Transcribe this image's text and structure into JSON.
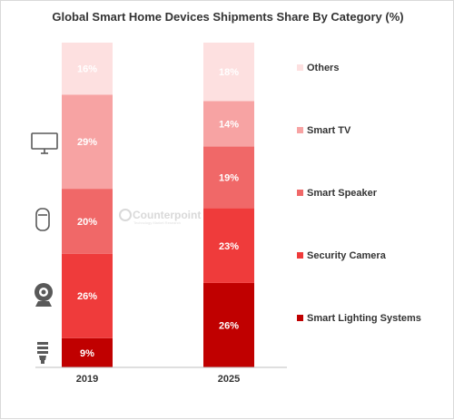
{
  "chart_data": {
    "type": "bar",
    "stacked": true,
    "title": "Global Smart Home Devices Shipments Share By Category (%)",
    "categories": [
      "2019",
      "2025"
    ],
    "series": [
      {
        "name": "Smart Lighting Systems",
        "values": [
          9,
          26
        ],
        "labels": [
          "9%",
          "26%"
        ],
        "color": "#c00000"
      },
      {
        "name": "Security Camera",
        "values": [
          26,
          23
        ],
        "labels": [
          "26%",
          "23%"
        ],
        "color": "#ef3b3b"
      },
      {
        "name": "Smart Speaker",
        "values": [
          20,
          19
        ],
        "labels": [
          "20%",
          "19%"
        ],
        "color": "#f06868"
      },
      {
        "name": "Smart TV",
        "values": [
          29,
          14
        ],
        "labels": [
          "29%",
          "14%"
        ],
        "color": "#f7a3a3"
      },
      {
        "name": "Others",
        "values": [
          16,
          18
        ],
        "labels": [
          "16%",
          "18%"
        ],
        "color": "#fde0e0"
      }
    ],
    "ylim": [
      0,
      100
    ],
    "legend_position": "right",
    "grid": false
  },
  "icons": [
    "television-icon",
    "smart-speaker-icon",
    "webcam-icon",
    "light-bulb-icon"
  ],
  "watermark": {
    "text": "Counterpoint",
    "subtext": "Technology Market Research"
  }
}
